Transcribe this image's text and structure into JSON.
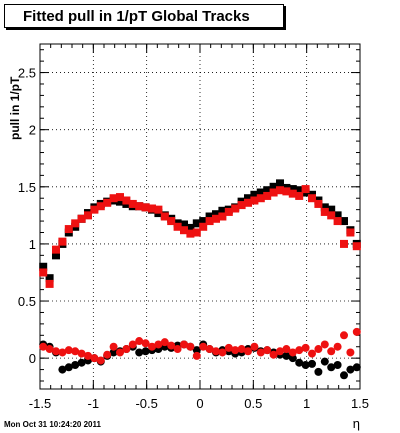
{
  "chart_data": {
    "type": "scatter",
    "title": "Fitted pull in 1/pT  Global Tracks",
    "xlabel": "η",
    "ylabel": "pull in 1/pT",
    "xlim": [
      -1.5,
      1.5
    ],
    "ylim": [
      -0.27,
      2.75
    ],
    "xticks": [
      "-1.5",
      "-1",
      "-0.5",
      "0",
      "0.5",
      "1",
      "1.5"
    ],
    "yticks": [
      "0",
      "0.5",
      "1",
      "1.5",
      "2",
      "2.5"
    ],
    "grid": true,
    "series": [
      {
        "name": "",
        "color": "#000000",
        "marker": "square",
        "x": [
          -1.47,
          -1.41,
          -1.35,
          -1.29,
          -1.23,
          -1.17,
          -1.11,
          -1.05,
          -0.99,
          -0.93,
          -0.87,
          -0.81,
          -0.75,
          -0.69,
          -0.63,
          -0.57,
          -0.51,
          -0.45,
          -0.39,
          -0.33,
          -0.27,
          -0.21,
          -0.15,
          -0.09,
          -0.03,
          0.03,
          0.09,
          0.15,
          0.21,
          0.27,
          0.33,
          0.39,
          0.45,
          0.51,
          0.57,
          0.63,
          0.69,
          0.75,
          0.81,
          0.87,
          0.93,
          0.99,
          1.05,
          1.11,
          1.17,
          1.23,
          1.29,
          1.35,
          1.41,
          1.47
        ],
        "values": [
          0.8,
          0.7,
          0.9,
          1.0,
          1.1,
          1.15,
          1.22,
          1.27,
          1.32,
          1.35,
          1.37,
          1.38,
          1.37,
          1.35,
          1.33,
          1.33,
          1.32,
          1.3,
          1.27,
          1.25,
          1.22,
          1.18,
          1.17,
          1.14,
          1.18,
          1.2,
          1.24,
          1.26,
          1.29,
          1.3,
          1.32,
          1.37,
          1.4,
          1.43,
          1.45,
          1.47,
          1.5,
          1.53,
          1.49,
          1.48,
          1.47,
          1.45,
          1.43,
          1.38,
          1.32,
          1.3,
          1.25,
          1.2,
          1.12,
          1.0
        ]
      },
      {
        "name": "",
        "color": "#ee1111",
        "marker": "square",
        "x": [
          -1.47,
          -1.41,
          -1.35,
          -1.29,
          -1.23,
          -1.17,
          -1.11,
          -1.05,
          -0.99,
          -0.93,
          -0.87,
          -0.81,
          -0.75,
          -0.69,
          -0.63,
          -0.57,
          -0.51,
          -0.45,
          -0.39,
          -0.33,
          -0.27,
          -0.21,
          -0.15,
          -0.09,
          -0.03,
          0.03,
          0.09,
          0.15,
          0.21,
          0.27,
          0.33,
          0.39,
          0.45,
          0.51,
          0.57,
          0.63,
          0.69,
          0.75,
          0.81,
          0.87,
          0.93,
          0.99,
          1.05,
          1.11,
          1.17,
          1.23,
          1.29,
          1.35,
          1.41,
          1.47
        ],
        "values": [
          0.75,
          0.65,
          0.95,
          1.02,
          1.13,
          1.18,
          1.22,
          1.25,
          1.3,
          1.33,
          1.36,
          1.4,
          1.41,
          1.38,
          1.35,
          1.33,
          1.32,
          1.31,
          1.3,
          1.24,
          1.2,
          1.15,
          1.12,
          1.09,
          1.1,
          1.15,
          1.2,
          1.22,
          1.24,
          1.28,
          1.31,
          1.34,
          1.36,
          1.38,
          1.4,
          1.42,
          1.45,
          1.47,
          1.46,
          1.44,
          1.42,
          1.48,
          1.4,
          1.35,
          1.28,
          1.25,
          1.2,
          1.0,
          1.1,
          0.98
        ]
      },
      {
        "name": "",
        "color": "#000000",
        "marker": "circle",
        "x": [
          -1.47,
          -1.41,
          -1.35,
          -1.29,
          -1.23,
          -1.17,
          -1.11,
          -1.05,
          -0.99,
          -0.93,
          -0.87,
          -0.81,
          -0.75,
          -0.69,
          -0.63,
          -0.57,
          -0.51,
          -0.45,
          -0.39,
          -0.33,
          -0.27,
          -0.21,
          -0.15,
          -0.09,
          -0.03,
          0.03,
          0.09,
          0.15,
          0.21,
          0.27,
          0.33,
          0.39,
          0.45,
          0.51,
          0.57,
          0.63,
          0.69,
          0.75,
          0.81,
          0.87,
          0.93,
          0.99,
          1.05,
          1.11,
          1.17,
          1.23,
          1.29,
          1.35,
          1.41,
          1.47
        ],
        "values": [
          0.12,
          0.1,
          0.05,
          -0.1,
          -0.08,
          -0.06,
          -0.04,
          -0.02,
          0.0,
          -0.03,
          0.02,
          0.05,
          0.06,
          0.08,
          0.1,
          0.05,
          0.06,
          0.07,
          0.08,
          0.1,
          0.09,
          0.11,
          0.12,
          0.1,
          0.07,
          0.12,
          0.08,
          0.05,
          0.07,
          0.06,
          0.04,
          0.05,
          0.08,
          0.09,
          0.06,
          0.07,
          0.05,
          0.03,
          0.02,
          0.0,
          -0.04,
          -0.06,
          -0.05,
          -0.12,
          -0.03,
          -0.08,
          -0.06,
          -0.15,
          -0.1,
          -0.08
        ]
      },
      {
        "name": "",
        "color": "#ee1111",
        "marker": "circle",
        "x": [
          -1.47,
          -1.41,
          -1.35,
          -1.29,
          -1.23,
          -1.17,
          -1.11,
          -1.05,
          -0.99,
          -0.93,
          -0.87,
          -0.81,
          -0.75,
          -0.69,
          -0.63,
          -0.57,
          -0.51,
          -0.45,
          -0.39,
          -0.33,
          -0.27,
          -0.21,
          -0.15,
          -0.09,
          -0.03,
          0.03,
          0.09,
          0.15,
          0.21,
          0.27,
          0.33,
          0.39,
          0.45,
          0.51,
          0.57,
          0.63,
          0.69,
          0.75,
          0.81,
          0.87,
          0.93,
          0.99,
          1.05,
          1.11,
          1.17,
          1.23,
          1.29,
          1.35,
          1.41,
          1.47
        ],
        "values": [
          0.1,
          0.08,
          0.06,
          0.05,
          0.07,
          0.06,
          0.04,
          0.02,
          0.0,
          -0.02,
          0.03,
          0.1,
          0.05,
          0.08,
          0.12,
          0.15,
          0.13,
          0.1,
          0.12,
          0.14,
          0.11,
          0.08,
          0.12,
          0.1,
          0.02,
          0.1,
          0.08,
          0.06,
          0.05,
          0.09,
          0.07,
          0.08,
          0.06,
          0.1,
          0.05,
          0.07,
          0.03,
          0.06,
          0.08,
          0.05,
          0.07,
          0.09,
          0.04,
          0.08,
          0.12,
          0.06,
          0.1,
          0.2,
          0.05,
          0.23
        ]
      }
    ]
  },
  "footer": {
    "timestamp": "Mon Oct 31 10:24:20 2011"
  }
}
